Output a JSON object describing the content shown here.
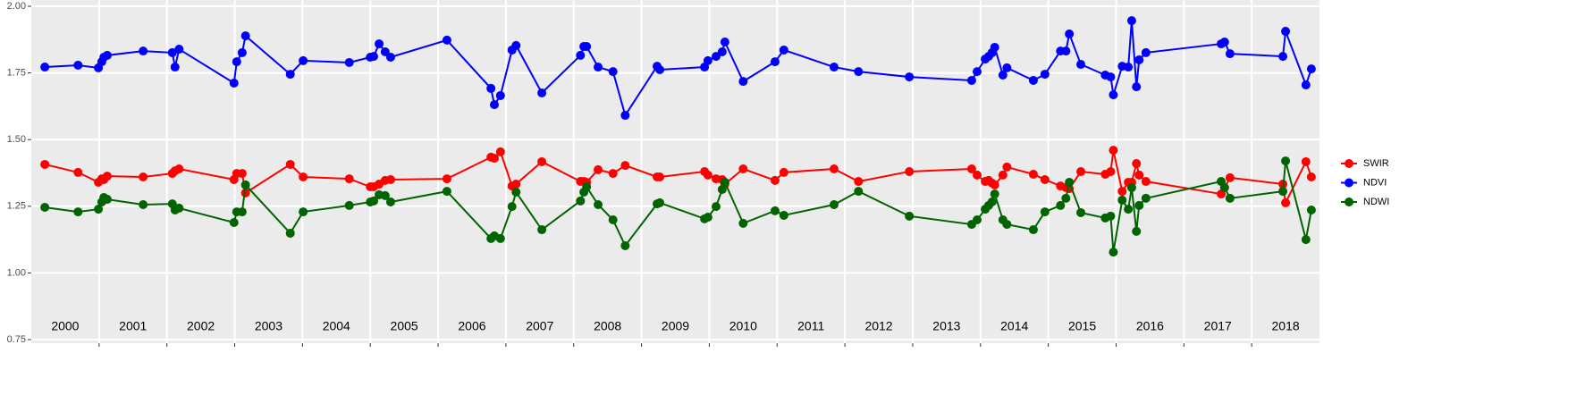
{
  "chart_data": {
    "type": "line",
    "x": [
      2000.2,
      2000.69,
      2000.99,
      2001.04,
      2001.07,
      2001.12,
      2001.65,
      2002.08,
      2002.12,
      2002.18,
      2002.99,
      2003.03,
      2003.11,
      2003.16,
      2003.82,
      2004.01,
      2004.69,
      2005.0,
      2005.05,
      2005.13,
      2005.22,
      2005.3,
      2006.13,
      2006.78,
      2006.83,
      2006.92,
      2007.09,
      2007.15,
      2007.53,
      2008.1,
      2008.15,
      2008.19,
      2008.36,
      2008.58,
      2008.76,
      2009.23,
      2009.27,
      2009.93,
      2009.98,
      2010.1,
      2010.19,
      2010.23,
      2010.5,
      2010.97,
      2011.1,
      2011.84,
      2012.2,
      2012.95,
      2013.87,
      2013.95,
      2014.07,
      2014.12,
      2014.17,
      2014.21,
      2014.33,
      2014.39,
      2014.78,
      2014.95,
      2015.18,
      2015.26,
      2015.31,
      2015.48,
      2015.84,
      2015.92,
      2015.96,
      2016.09,
      2016.18,
      2016.23,
      2016.3,
      2016.34,
      2016.44,
      2017.55,
      2017.6,
      2017.68,
      2018.46,
      2018.5,
      2018.8,
      2018.88
    ],
    "series": [
      {
        "name": "SWIR",
        "color": "#ff0000",
        "values": [
          1.407,
          1.377,
          1.34,
          1.353,
          1.35,
          1.363,
          1.36,
          1.373,
          1.383,
          1.39,
          1.35,
          1.373,
          1.373,
          1.3,
          1.407,
          1.36,
          1.353,
          1.323,
          1.323,
          1.333,
          1.347,
          1.35,
          1.353,
          1.434,
          1.43,
          1.454,
          1.326,
          1.333,
          1.417,
          1.343,
          1.343,
          1.34,
          1.387,
          1.373,
          1.403,
          1.36,
          1.36,
          1.38,
          1.367,
          1.353,
          1.35,
          1.333,
          1.39,
          1.347,
          1.377,
          1.39,
          1.343,
          1.38,
          1.39,
          1.367,
          1.343,
          1.347,
          1.337,
          1.33,
          1.367,
          1.397,
          1.37,
          1.35,
          1.326,
          1.32,
          1.316,
          1.38,
          1.37,
          1.38,
          1.46,
          1.306,
          1.34,
          1.34,
          1.41,
          1.367,
          1.343,
          1.296,
          1.32,
          1.357,
          1.333,
          1.263,
          1.417,
          1.36
        ]
      },
      {
        "name": "NDVI",
        "color": "#0000ff",
        "values": [
          1.772,
          1.779,
          1.769,
          1.792,
          1.809,
          1.816,
          1.832,
          1.826,
          1.772,
          1.839,
          1.712,
          1.792,
          1.826,
          1.889,
          1.745,
          1.796,
          1.789,
          1.809,
          1.812,
          1.859,
          1.829,
          1.809,
          1.873,
          1.692,
          1.631,
          1.665,
          1.836,
          1.853,
          1.675,
          1.816,
          1.849,
          1.849,
          1.772,
          1.755,
          1.591,
          1.775,
          1.762,
          1.772,
          1.796,
          1.812,
          1.829,
          1.866,
          1.718,
          1.792,
          1.836,
          1.772,
          1.755,
          1.735,
          1.722,
          1.755,
          1.802,
          1.812,
          1.826,
          1.846,
          1.742,
          1.769,
          1.722,
          1.745,
          1.832,
          1.832,
          1.896,
          1.782,
          1.742,
          1.735,
          1.668,
          1.775,
          1.772,
          1.946,
          1.698,
          1.799,
          1.826,
          1.859,
          1.866,
          1.822,
          1.812,
          1.906,
          1.705,
          1.765
        ]
      },
      {
        "name": "NDWI",
        "color": "#006400",
        "values": [
          1.246,
          1.229,
          1.239,
          1.266,
          1.283,
          1.276,
          1.256,
          1.259,
          1.236,
          1.243,
          1.189,
          1.229,
          1.229,
          1.33,
          1.149,
          1.229,
          1.253,
          1.266,
          1.27,
          1.293,
          1.29,
          1.266,
          1.306,
          1.129,
          1.139,
          1.129,
          1.249,
          1.303,
          1.162,
          1.27,
          1.303,
          1.323,
          1.256,
          1.199,
          1.102,
          1.259,
          1.263,
          1.203,
          1.209,
          1.249,
          1.313,
          1.34,
          1.186,
          1.233,
          1.216,
          1.256,
          1.306,
          1.213,
          1.182,
          1.199,
          1.239,
          1.253,
          1.266,
          1.296,
          1.199,
          1.182,
          1.162,
          1.229,
          1.253,
          1.28,
          1.34,
          1.226,
          1.206,
          1.213,
          1.078,
          1.273,
          1.239,
          1.32,
          1.156,
          1.253,
          1.28,
          1.343,
          1.32,
          1.28,
          1.306,
          1.42,
          1.125,
          1.236
        ]
      }
    ],
    "xlim": [
      2000,
      2019
    ],
    "year_boundaries": [
      2001,
      2002,
      2003,
      2004,
      2005,
      2006,
      2007,
      2008,
      2009,
      2010,
      2011,
      2012,
      2013,
      2014,
      2015,
      2016,
      2017,
      2018
    ],
    "year_labels": [
      {
        "value": 2000.5,
        "label": "2000"
      },
      {
        "value": 2001.5,
        "label": "2001"
      },
      {
        "value": 2002.5,
        "label": "2002"
      },
      {
        "value": 2003.5,
        "label": "2003"
      },
      {
        "value": 2004.5,
        "label": "2004"
      },
      {
        "value": 2005.5,
        "label": "2005"
      },
      {
        "value": 2006.5,
        "label": "2006"
      },
      {
        "value": 2007.5,
        "label": "2007"
      },
      {
        "value": 2008.5,
        "label": "2008"
      },
      {
        "value": 2009.5,
        "label": "2009"
      },
      {
        "value": 2010.5,
        "label": "2010"
      },
      {
        "value": 2011.5,
        "label": "2011"
      },
      {
        "value": 2012.5,
        "label": "2012"
      },
      {
        "value": 2013.5,
        "label": "2013"
      },
      {
        "value": 2014.5,
        "label": "2014"
      },
      {
        "value": 2015.5,
        "label": "2015"
      },
      {
        "value": 2016.5,
        "label": "2016"
      },
      {
        "value": 2017.5,
        "label": "2017"
      },
      {
        "value": 2018.5,
        "label": "2018"
      }
    ],
    "ylim": [
      0.75,
      2.0
    ],
    "yticks": [
      0.75,
      {
        "value": 1.0,
        "label": "1.00"
      },
      1.25,
      {
        "value": 1.5,
        "label": "1.50"
      },
      1.75,
      {
        "value": 2.0,
        "label": "2.00"
      }
    ],
    "grid": true,
    "legend": "right"
  }
}
